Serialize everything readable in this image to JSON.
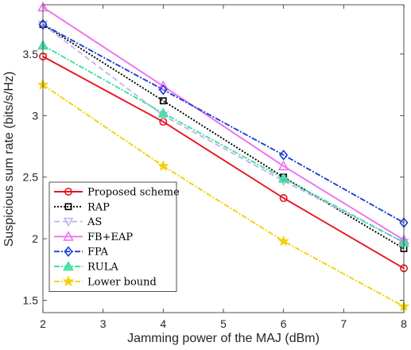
{
  "chart_data": {
    "type": "line",
    "title": "",
    "xlabel": "Jamming power of the MAJ (dBm)",
    "ylabel": "Suspicious sum rate (bits/s/Hz)",
    "xlim": [
      2,
      8
    ],
    "ylim": [
      1.4,
      3.9
    ],
    "xticks": [
      "2",
      "3",
      "4",
      "5",
      "6",
      "7",
      "8"
    ],
    "yticks": [
      "1.5",
      "2",
      "2.5",
      "3",
      "3.5"
    ],
    "grid": false,
    "legend_placement": "bottom-left",
    "x": [
      2,
      4,
      6,
      8
    ],
    "series": [
      {
        "name": "Proposed scheme",
        "values": [
          3.48,
          2.95,
          2.33,
          1.76
        ],
        "color": "#e8141e",
        "dash": "",
        "marker": "circle"
      },
      {
        "name": "RAP",
        "values": [
          3.74,
          3.12,
          2.5,
          1.92
        ],
        "color": "#000000",
        "dash": "2,2",
        "marker": "square"
      },
      {
        "name": "AS",
        "values": [
          3.74,
          3.0,
          2.47,
          1.97
        ],
        "color": "#c4b5f0",
        "dash": "7,4",
        "marker": "triangle-down"
      },
      {
        "name": "FB+EAP",
        "values": [
          3.88,
          3.24,
          2.59,
          1.99
        ],
        "color": "#f070f0",
        "dash": "",
        "marker": "triangle-up"
      },
      {
        "name": "FPA",
        "values": [
          3.74,
          3.21,
          2.68,
          2.13
        ],
        "color": "#1c3fd6",
        "dash": "7,2,2,2",
        "marker": "diamond"
      },
      {
        "name": "RULA",
        "values": [
          3.57,
          3.02,
          2.49,
          1.97
        ],
        "color": "#3fe0a0",
        "dash": "7,2,2,2",
        "marker": "triangle-up-filled"
      },
      {
        "name": "Lower bound",
        "values": [
          3.25,
          2.59,
          1.98,
          1.45
        ],
        "color": "#f2d20c",
        "dash": "7,2,2,2",
        "marker": "star"
      }
    ]
  }
}
